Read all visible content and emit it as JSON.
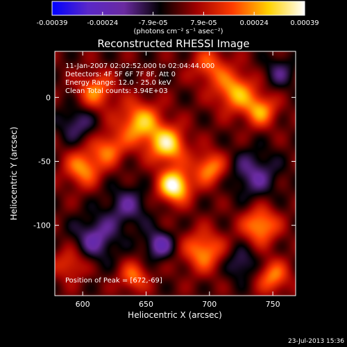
{
  "chart_data": {
    "type": "heatmap",
    "title": "Reconstructed RHESSI Image",
    "xlabel": "Heliocentric X (arcsec)",
    "ylabel": "Heliocentric Y (arcsec)",
    "xlim": [
      578,
      768
    ],
    "ylim": [
      -155,
      36
    ],
    "x_ticks": [
      600,
      650,
      700,
      750
    ],
    "y_ticks": [
      0,
      -50,
      -100
    ],
    "colorbar": {
      "ticks": [
        "-0.00039",
        "-0.00024",
        "-7.9e-05",
        "7.9e-05",
        "0.00024",
        "0.00039"
      ],
      "range": [
        -0.00039,
        0.00039
      ],
      "unit_label": "(photons cm⁻² s⁻¹ asec⁻²)",
      "colormap": [
        "#0000ff",
        "#5a28c8",
        "#6a2aa0",
        "#000000",
        "#a00000",
        "#ff3c00",
        "#ffd200",
        "#ffffff"
      ]
    },
    "annotations": [
      "11-Jan-2007 02:02:52.000 to 02:04:44.000",
      "Detectors: 4F 5F 6F 7F 8F, Att 0",
      "Energy Range: 12.0 - 25.0 keV",
      "Clean     Total counts: 3.94E+03"
    ],
    "peak_label": "Position of Peak = [672,-69]",
    "peak": {
      "x": 672,
      "y": -69
    },
    "sources": [
      {
        "x": 672,
        "y": -69,
        "amp": 1.0,
        "sigma": 9
      },
      {
        "x": 667,
        "y": -37,
        "amp": 0.8,
        "sigma": 10
      },
      {
        "x": 645,
        "y": -20,
        "amp": 0.7,
        "sigma": 12
      },
      {
        "x": 700,
        "y": -55,
        "amp": 0.6,
        "sigma": 9
      },
      {
        "x": 720,
        "y": 5,
        "amp": 0.65,
        "sigma": 11
      },
      {
        "x": 740,
        "y": -10,
        "amp": 0.6,
        "sigma": 9
      },
      {
        "x": 610,
        "y": 5,
        "amp": 0.55,
        "sigma": 10
      },
      {
        "x": 600,
        "y": -55,
        "amp": 0.6,
        "sigma": 10
      },
      {
        "x": 620,
        "y": -40,
        "amp": 0.5,
        "sigma": 9
      },
      {
        "x": 695,
        "y": -120,
        "amp": 0.6,
        "sigma": 11
      },
      {
        "x": 740,
        "y": -100,
        "amp": 0.65,
        "sigma": 10
      },
      {
        "x": 750,
        "y": -140,
        "amp": 0.55,
        "sigma": 9
      },
      {
        "x": 640,
        "y": -140,
        "amp": 0.5,
        "sigma": 8
      },
      {
        "x": 590,
        "y": -130,
        "amp": 0.4,
        "sigma": 9
      },
      {
        "x": 700,
        "y": 25,
        "amp": 0.45,
        "sigma": 10
      },
      {
        "x": 635,
        "y": -85,
        "amp": -0.35,
        "sigma": 12
      },
      {
        "x": 735,
        "y": -60,
        "amp": -0.4,
        "sigma": 13
      },
      {
        "x": 610,
        "y": -110,
        "amp": -0.45,
        "sigma": 12
      },
      {
        "x": 660,
        "y": -115,
        "amp": -0.5,
        "sigma": 8
      },
      {
        "x": 595,
        "y": -20,
        "amp": -0.35,
        "sigma": 10
      },
      {
        "x": 755,
        "y": 20,
        "amp": -0.3,
        "sigma": 9
      },
      {
        "x": 725,
        "y": -130,
        "amp": -0.35,
        "sigma": 9
      }
    ],
    "grid": false,
    "legend": "none"
  },
  "footer": {
    "timestamp": "23-Jul-2013 15:36"
  }
}
